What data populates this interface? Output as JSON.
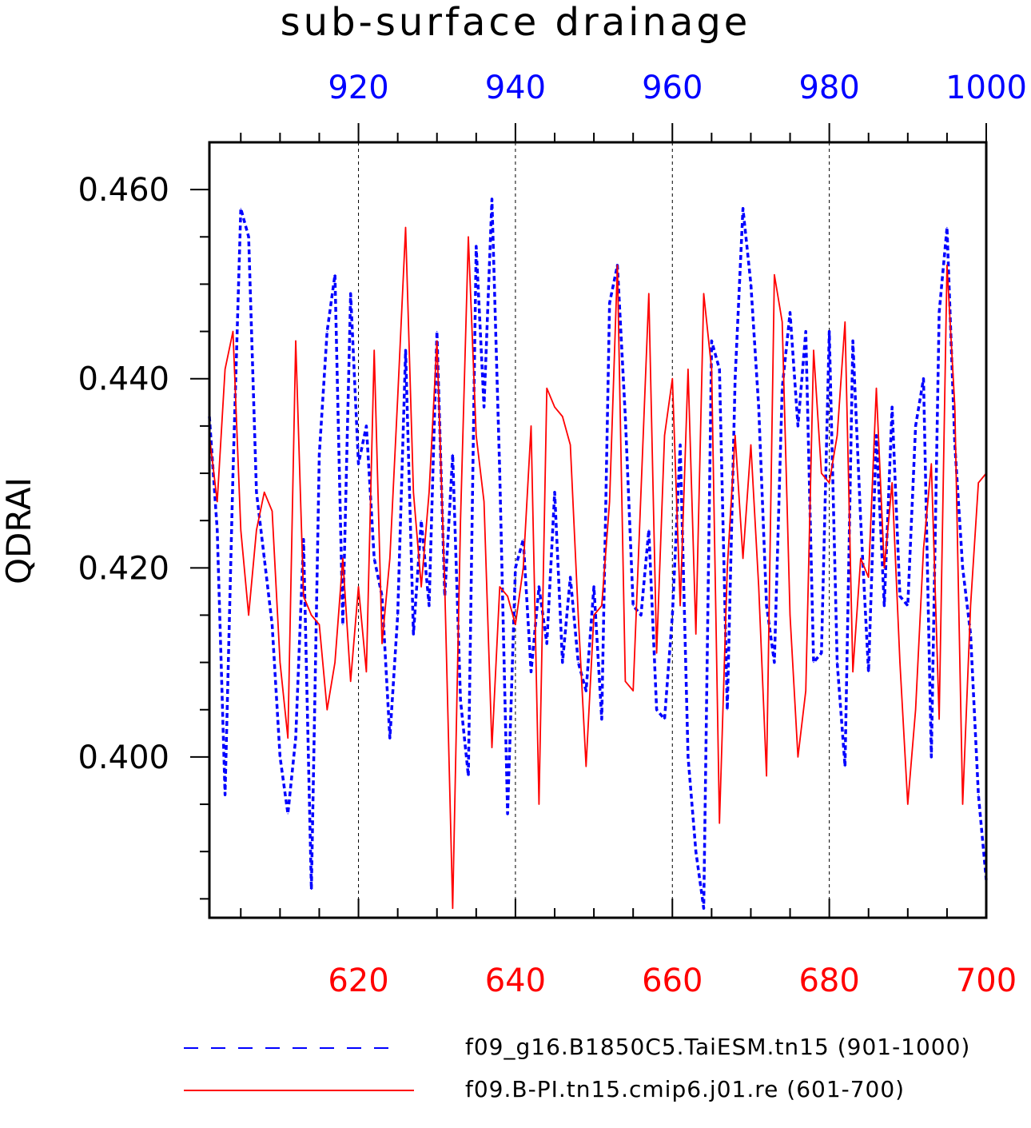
{
  "chart_data": {
    "type": "line",
    "title": "sub-surface drainage",
    "ylabel": "QDRAI",
    "ylim": [
      0.383,
      0.465
    ],
    "yticks": [
      "0.400",
      "0.420",
      "0.440",
      "0.460"
    ],
    "ytick_values": [
      0.4,
      0.42,
      0.44,
      0.46
    ],
    "grid": "vertical dashed at 20-year intervals",
    "axis_top": {
      "range": [
        901,
        1000
      ],
      "ticks": [
        920,
        940,
        960,
        980,
        1000
      ],
      "color": "#0000ff"
    },
    "axis_bottom": {
      "range": [
        601,
        700
      ],
      "ticks": [
        620,
        640,
        660,
        680,
        700
      ],
      "color": "#ff0000"
    },
    "legend_placement": "bottom",
    "series": [
      {
        "name": "f09_g16.B1850C5.TaiESM.tn15 (901-1000)",
        "axis": "top",
        "color": "#0000ff",
        "style": "dashed",
        "start_year": 901,
        "values": [
          0.436,
          0.424,
          0.396,
          0.43,
          0.458,
          0.455,
          0.428,
          0.421,
          0.414,
          0.4,
          0.394,
          0.402,
          0.423,
          0.386,
          0.432,
          0.445,
          0.451,
          0.414,
          0.449,
          0.431,
          0.435,
          0.421,
          0.417,
          0.402,
          0.415,
          0.443,
          0.413,
          0.425,
          0.416,
          0.445,
          0.417,
          0.432,
          0.406,
          0.398,
          0.454,
          0.437,
          0.459,
          0.43,
          0.394,
          0.42,
          0.423,
          0.409,
          0.418,
          0.412,
          0.428,
          0.41,
          0.419,
          0.41,
          0.407,
          0.418,
          0.404,
          0.448,
          0.452,
          0.436,
          0.416,
          0.415,
          0.424,
          0.405,
          0.404,
          0.415,
          0.433,
          0.4,
          0.39,
          0.384,
          0.444,
          0.441,
          0.405,
          0.44,
          0.458,
          0.45,
          0.437,
          0.416,
          0.41,
          0.439,
          0.447,
          0.435,
          0.445,
          0.41,
          0.411,
          0.445,
          0.41,
          0.399,
          0.444,
          0.425,
          0.409,
          0.434,
          0.416,
          0.437,
          0.417,
          0.416,
          0.435,
          0.44,
          0.4,
          0.447,
          0.456,
          0.433,
          0.42,
          0.413,
          0.396,
          0.387
        ]
      },
      {
        "name": "f09.B-PI.tn15.cmip6.j01.re (601-700)",
        "axis": "bottom",
        "color": "#ff0000",
        "style": "solid",
        "start_year": 601,
        "values": [
          0.434,
          0.427,
          0.441,
          0.445,
          0.424,
          0.415,
          0.424,
          0.428,
          0.426,
          0.41,
          0.402,
          0.444,
          0.417,
          0.415,
          0.414,
          0.405,
          0.41,
          0.421,
          0.408,
          0.418,
          0.409,
          0.443,
          0.412,
          0.421,
          0.438,
          0.456,
          0.428,
          0.418,
          0.428,
          0.444,
          0.418,
          0.384,
          0.425,
          0.455,
          0.434,
          0.427,
          0.401,
          0.418,
          0.417,
          0.414,
          0.42,
          0.435,
          0.395,
          0.439,
          0.437,
          0.436,
          0.433,
          0.415,
          0.399,
          0.415,
          0.416,
          0.427,
          0.452,
          0.408,
          0.407,
          0.428,
          0.449,
          0.411,
          0.434,
          0.44,
          0.416,
          0.441,
          0.413,
          0.449,
          0.441,
          0.393,
          0.42,
          0.434,
          0.421,
          0.433,
          0.418,
          0.398,
          0.451,
          0.446,
          0.415,
          0.4,
          0.407,
          0.443,
          0.43,
          0.429,
          0.434,
          0.446,
          0.409,
          0.421,
          0.419,
          0.439,
          0.42,
          0.429,
          0.41,
          0.395,
          0.405,
          0.422,
          0.431,
          0.404,
          0.452,
          0.437,
          0.395,
          0.416,
          0.429,
          0.43
        ]
      }
    ]
  }
}
